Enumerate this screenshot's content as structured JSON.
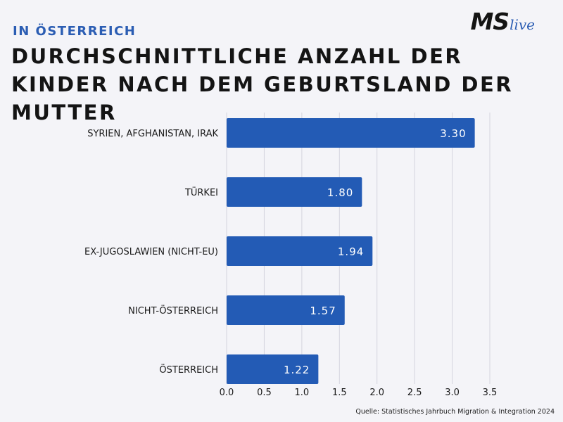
{
  "header": {
    "kicker": "IN ÖSTERREICH",
    "title": "DURCHSCHNITTLICHE ANZAHL DER KINDER NACH DEM GEBURTSLAND DER MUTTER"
  },
  "logo": {
    "ms": "MS",
    "live": "live"
  },
  "source": "Quelle: Statistisches Jahrbuch Migration & Integration 2024",
  "colors": {
    "bar": "#235bb5",
    "grid": "#d4d4de",
    "text": "#1a1a1a",
    "accent": "#2b5db3"
  },
  "chart_data": {
    "type": "bar",
    "orientation": "horizontal",
    "categories": [
      "SYRIEN, AFGHANISTAN, IRAK",
      "TÜRKEI",
      "EX-JUGOSLAWIEN (NICHT-EU)",
      "NICHT-ÖSTERREICH",
      "ÖSTERREICH"
    ],
    "values": [
      3.3,
      1.8,
      1.94,
      1.57,
      1.22
    ],
    "value_labels": [
      "3.30",
      "1.80",
      "1.94",
      "1.57",
      "1.22"
    ],
    "xlim": [
      0,
      3.5
    ],
    "xticks": [
      0.0,
      0.5,
      1.0,
      1.5,
      2.0,
      2.5,
      3.0,
      3.5
    ],
    "xtick_labels": [
      "0.0",
      "0.5",
      "1.0",
      "1.5",
      "2.0",
      "2.5",
      "3.0",
      "3.5"
    ],
    "grid": true,
    "title": "DURCHSCHNITTLICHE ANZAHL DER KINDER NACH DEM GEBURTSLAND DER MUTTER",
    "xlabel": "",
    "ylabel": ""
  }
}
